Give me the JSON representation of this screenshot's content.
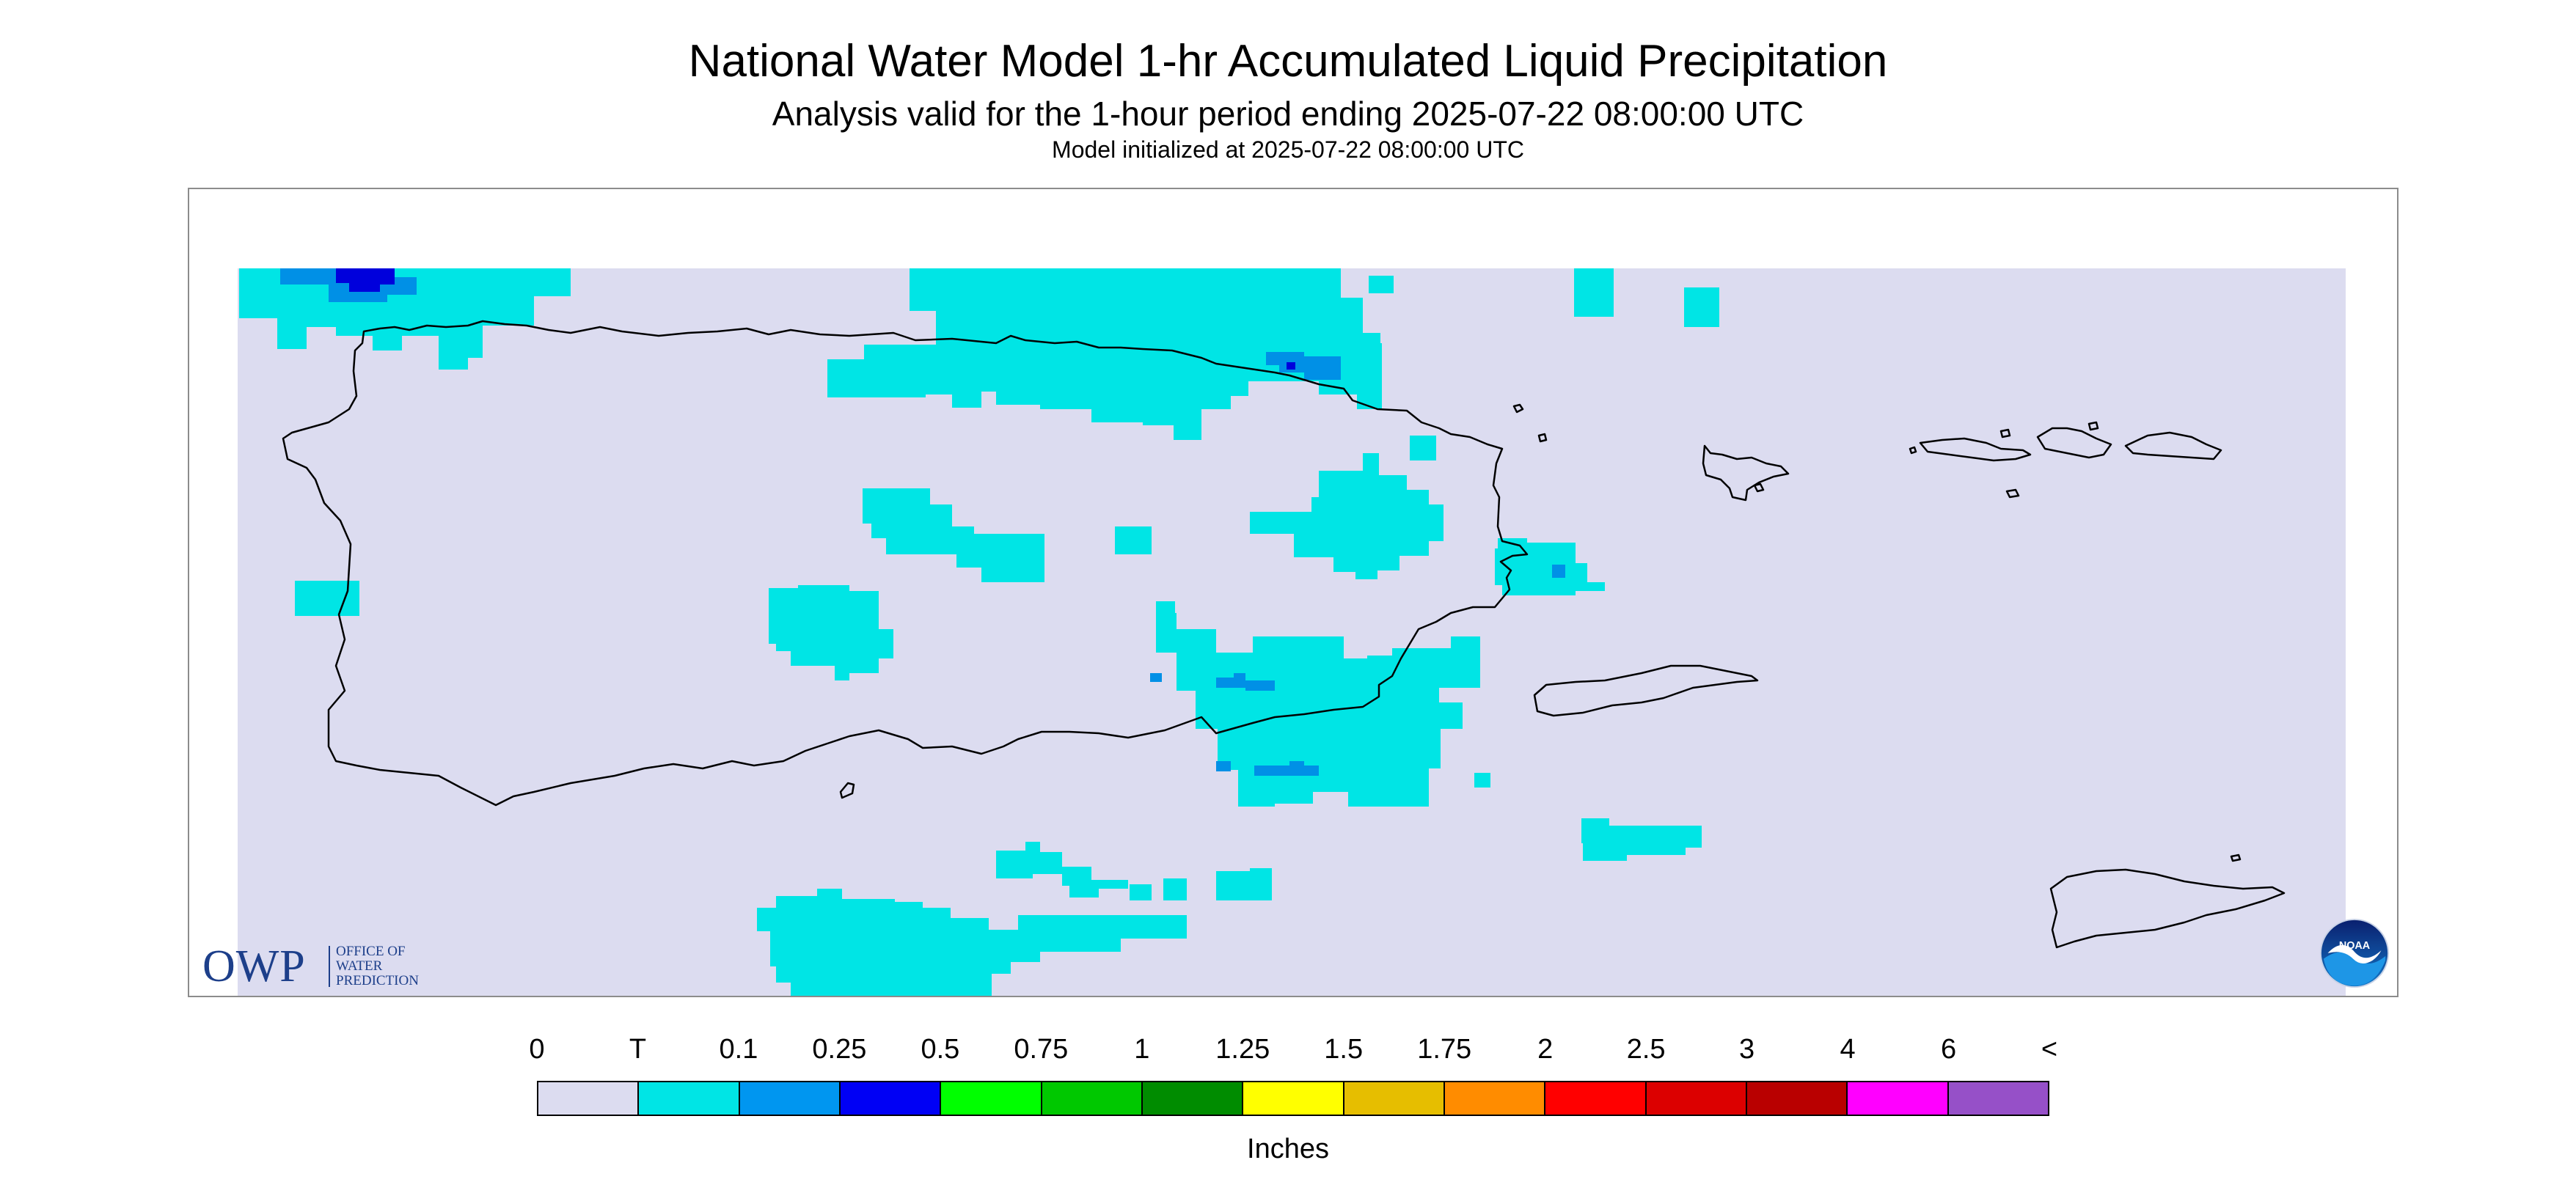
{
  "header": {
    "title": "National Water Model 1-hr Accumulated Liquid Precipitation",
    "subtitle": "Analysis valid for the 1-hour period ending 2025-07-22 08:00:00 UTC",
    "init_line": "Model initialized at 2025-07-22 08:00:00 UTC"
  },
  "map": {
    "background_color": "#dcdcf0",
    "coastline_color": "#000000",
    "precip_trace_color": "#00e5e5",
    "precip_light_color": "#0090e6",
    "precip_heavy_color": "#0000dc"
  },
  "logos": {
    "owp": {
      "mark": "OWP",
      "name_lines": [
        "OFFICE OF",
        "WATER",
        "PREDICTION"
      ]
    },
    "noaa": {
      "text": "NOAA",
      "icon": "noaa-emblem-icon"
    }
  },
  "colorbar": {
    "unit": "Inches",
    "labels": [
      "0",
      "T",
      "0.1",
      "0.25",
      "0.5",
      "0.75",
      "1",
      "1.25",
      "1.5",
      "1.75",
      "2",
      "2.5",
      "3",
      "4",
      "6",
      "<"
    ],
    "colors": [
      "#dcdcf0",
      "#00e5e5",
      "#0096f0",
      "#0000f5",
      "#00ff00",
      "#00c800",
      "#008c00",
      "#ffff00",
      "#e6be00",
      "#ff8c00",
      "#ff0000",
      "#dc0000",
      "#b90000",
      "#ff00ff",
      "#9650c8"
    ]
  }
}
